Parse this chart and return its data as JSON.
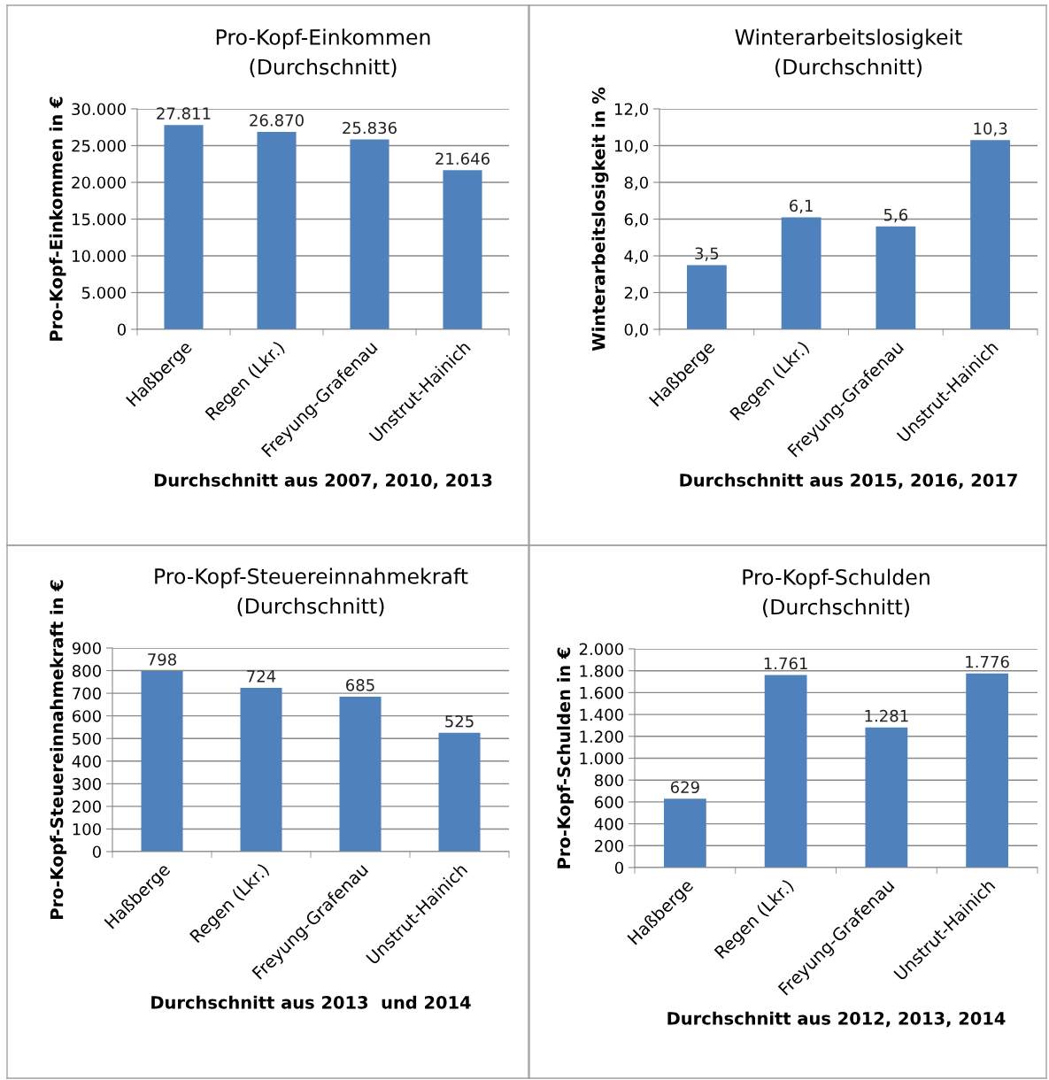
{
  "chart_data": [
    {
      "type": "bar",
      "title": "Pro-Kopf-Einkommen\n(Durchschnitt)",
      "ylabel": "Pro-Kopf-Einkommen in €",
      "xlabel": "Durchschnitt aus 2007, 2010, 2013",
      "categories": [
        "Haßberge",
        "Regen (Lkr.)",
        "Freyung-Grafenau",
        "Unstrut-Hainich"
      ],
      "values": [
        27811,
        26870,
        25836,
        21646
      ],
      "value_labels": [
        "27.811",
        "26.870",
        "25.836",
        "21.646"
      ],
      "color": "#4f81bd",
      "ylim": [
        0,
        30000
      ],
      "yticks": [
        {
          "value": 0,
          "label": "0"
        },
        {
          "value": 5000,
          "label": "5.000"
        },
        {
          "value": 10000,
          "label": "10.000"
        },
        {
          "value": 15000,
          "label": "15.000"
        },
        {
          "value": 20000,
          "label": "20.000"
        },
        {
          "value": 25000,
          "label": "25.000"
        },
        {
          "value": 30000,
          "label": "30.000"
        }
      ],
      "grid": "y"
    },
    {
      "type": "bar",
      "title": "Winterarbeitslosigkeit\n(Durchschnitt)",
      "ylabel": "Winterarbeitslosigkeit in %",
      "xlabel": "Durchschnitt aus 2015, 2016, 2017",
      "categories": [
        "Haßberge",
        "Regen (Lkr.)",
        "Freyung-Grafenau",
        "Unstrut-Hainich"
      ],
      "values": [
        3.5,
        6.1,
        5.6,
        10.3
      ],
      "value_labels": [
        "3,5",
        "6,1",
        "5,6",
        "10,3"
      ],
      "color": "#4f81bd",
      "ylim": [
        0,
        12
      ],
      "yticks": [
        {
          "value": 0,
          "label": "0,0"
        },
        {
          "value": 2,
          "label": "2,0"
        },
        {
          "value": 4,
          "label": "4,0"
        },
        {
          "value": 6,
          "label": "6,0"
        },
        {
          "value": 8,
          "label": "8,0"
        },
        {
          "value": 10,
          "label": "10,0"
        },
        {
          "value": 12,
          "label": "12,0"
        }
      ],
      "grid": "y"
    },
    {
      "type": "bar",
      "title": "Pro-Kopf-Steuereinnahmekraft\n(Durchschnitt)",
      "ylabel": "Pro-Kopf-Steuereinnahmekraft in €",
      "xlabel": "Durchschnitt aus 2013  und 2014",
      "categories": [
        "Haßberge",
        "Regen (Lkr.)",
        "Freyung-Grafenau",
        "Unstrut-Hainich"
      ],
      "values": [
        798,
        724,
        685,
        525
      ],
      "value_labels": [
        "798",
        "724",
        "685",
        "525"
      ],
      "color": "#4f81bd",
      "ylim": [
        0,
        900
      ],
      "yticks": [
        0,
        100,
        200,
        300,
        400,
        500,
        600,
        700,
        800,
        900
      ],
      "grid": "y"
    },
    {
      "type": "bar",
      "title": "Pro-Kopf-Schulden\n(Durchschnitt)",
      "ylabel": "Pro-Kopf-Schulden in €",
      "xlabel": "Durchschnitt aus 2012, 2013, 2014",
      "categories": [
        "Haßberge",
        "Regen (Lkr.)",
        "Freyung-Grafenau",
        "Unstrut-Hainich"
      ],
      "values": [
        629,
        1761,
        1281,
        1776
      ],
      "value_labels": [
        "629",
        "1.761",
        "1.281",
        "1.776"
      ],
      "color": "#4f81bd",
      "ylim": [
        0,
        2000
      ],
      "yticks": [
        {
          "value": 0,
          "label": "0"
        },
        {
          "value": 200,
          "label": "200"
        },
        {
          "value": 400,
          "label": "400"
        },
        {
          "value": 600,
          "label": "600"
        },
        {
          "value": 800,
          "label": "800"
        },
        {
          "value": 1000,
          "label": "1.000"
        },
        {
          "value": 1200,
          "label": "1.200"
        },
        {
          "value": 1400,
          "label": "1.400"
        },
        {
          "value": 1600,
          "label": "1.600"
        },
        {
          "value": 1800,
          "label": "1.800"
        },
        {
          "value": 2000,
          "label": "2.000"
        }
      ],
      "grid": "y"
    }
  ]
}
